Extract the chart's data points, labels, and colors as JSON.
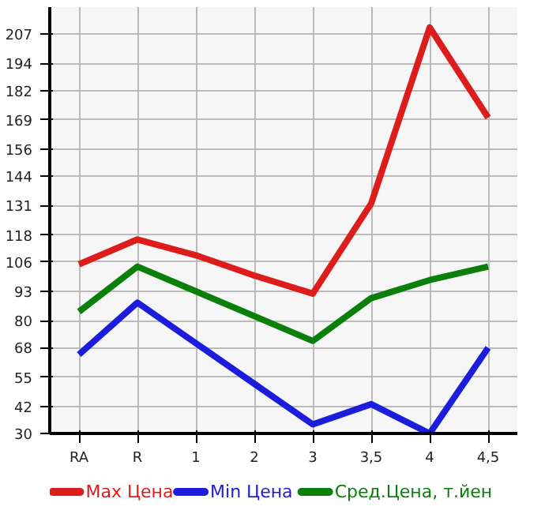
{
  "chart_data": {
    "type": "line",
    "categories": [
      "RA",
      "R",
      "1",
      "2",
      "3",
      "3,5",
      "4",
      "4,5"
    ],
    "series": [
      {
        "name": "Max Цена",
        "color": "#dd1c1c",
        "values": [
          105,
          116,
          109,
          100,
          92,
          132,
          210,
          170
        ]
      },
      {
        "name": "Min Цена",
        "color": "#1c1cdd",
        "values": [
          65,
          88,
          70,
          52,
          34,
          43,
          30,
          68
        ]
      },
      {
        "name": "Сред.Цена, т.йен",
        "color": "#0a800a",
        "values": [
          84,
          104,
          93,
          82,
          71,
          90,
          98,
          104
        ]
      }
    ],
    "ylim": [
      30,
      219
    ],
    "yticks": [
      30,
      42,
      55,
      68,
      80,
      93,
      106,
      118,
      131,
      144,
      156,
      169,
      182,
      194,
      207
    ],
    "grid": true,
    "legend": "bottom",
    "marker": "none",
    "line_style": "solid"
  }
}
